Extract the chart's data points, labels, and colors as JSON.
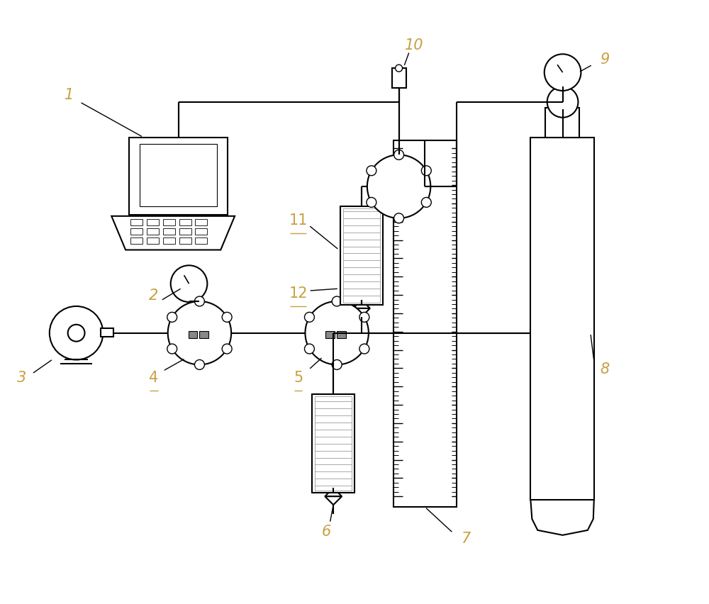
{
  "bg_color": "#ffffff",
  "line_color": "#000000",
  "label_color": "#c8a040",
  "figsize": [
    10.0,
    8.52
  ],
  "dpi": 100
}
